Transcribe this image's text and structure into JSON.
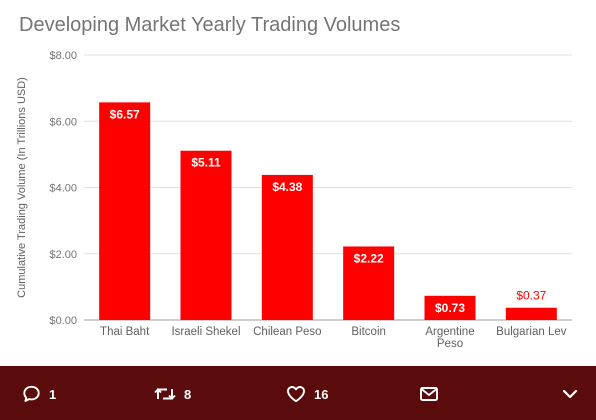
{
  "chart_data": {
    "type": "bar",
    "title": "Developing Market Yearly Trading Volumes",
    "xlabel": "",
    "ylabel": "Cumulative Trading Volume (In Trillions USD)",
    "categories": [
      [
        "Thai Baht"
      ],
      [
        "Israeli Shekel"
      ],
      [
        "Chilean Peso"
      ],
      [
        "Bitcoin"
      ],
      [
        "Argentine",
        "Peso"
      ],
      [
        "Bulgarian Lev"
      ]
    ],
    "values": [
      6.57,
      5.11,
      4.38,
      2.22,
      0.73,
      0.37
    ],
    "data_labels": [
      "$6.57",
      "$5.11",
      "$4.38",
      "$2.22",
      "$0.73",
      "$0.37"
    ],
    "yticks": [
      0,
      2,
      4,
      6,
      8
    ],
    "ytick_labels": [
      "$0.00",
      "$2.00",
      "$4.00",
      "$6.00",
      "$8.00"
    ],
    "ylim": [
      0,
      8
    ],
    "bar_color": "#ff0000",
    "grid": true,
    "legend": "none"
  },
  "colors": {
    "footer_bg": "#5a0b0b",
    "title": "#757575",
    "gridline": "#e0e0e0"
  },
  "actions": {
    "reply_icon": "speech-bubble-icon",
    "reply_count": "1",
    "retweet_icon": "retweet-icon",
    "retweet_count": "8",
    "like_icon": "heart-icon",
    "like_count": "16",
    "message_icon": "envelope-icon",
    "more_icon": "chevron-down-icon"
  }
}
